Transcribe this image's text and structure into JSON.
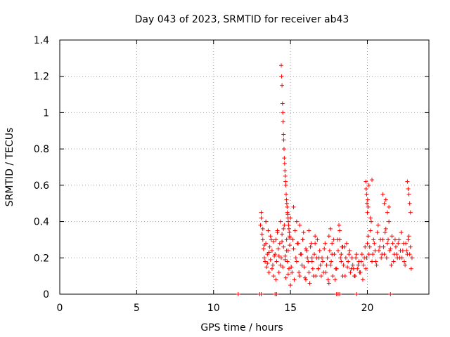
{
  "chart_data": {
    "type": "scatter",
    "title": "Day 043 of 2023, SRMTID for receiver ab43",
    "xlabel": "GPS time / hours",
    "ylabel": "SRMTID / TECUs",
    "xlim": [
      0,
      24
    ],
    "ylim": [
      0,
      1.4
    ],
    "xticks": [
      0,
      5,
      10,
      15,
      20
    ],
    "yticks": [
      0,
      0.2,
      0.4,
      0.6,
      0.8,
      1,
      1.2,
      1.4
    ],
    "xtick_labels": [
      "0",
      "5",
      "10",
      "15",
      "20"
    ],
    "ytick_labels": [
      "0",
      "0.2",
      "0.4",
      "0.6",
      "0.8",
      "1",
      "1.2",
      "1.4"
    ],
    "grid": true,
    "marker": "+",
    "color": "#ff0000",
    "series": [
      {
        "name": "SRMTID",
        "x": [
          11.6,
          13.0,
          13.1,
          14.0,
          14.1,
          18.0,
          18.1,
          18.2,
          19.3,
          21.5,
          13.05,
          13.1,
          13.15,
          13.2,
          13.25,
          13.3,
          13.35,
          13.4,
          13.45,
          13.5,
          13.55,
          13.6,
          13.65,
          13.7,
          13.75,
          13.8,
          13.85,
          13.9,
          13.95,
          13.1,
          13.2,
          13.3,
          13.4,
          13.5,
          13.6,
          13.7,
          13.8,
          13.9,
          14.0,
          14.05,
          14.1,
          14.15,
          14.2,
          14.25,
          14.3,
          14.35,
          14.4,
          14.45,
          14.5,
          14.55,
          14.6,
          14.65,
          14.7,
          14.75,
          14.8,
          14.85,
          14.9,
          14.95,
          14.05,
          14.15,
          14.25,
          14.35,
          14.45,
          14.55,
          14.65,
          14.75,
          14.85,
          14.95,
          14.4,
          14.42,
          14.45,
          14.48,
          14.5,
          14.52,
          14.55,
          14.56,
          14.58,
          14.6,
          14.62,
          14.64,
          14.66,
          14.68,
          14.7,
          14.72,
          14.74,
          14.76,
          14.78,
          14.8,
          14.82,
          14.84,
          14.86,
          14.88,
          14.9,
          14.92,
          14.94,
          15.0,
          15.1,
          15.2,
          15.3,
          15.4,
          15.5,
          15.6,
          15.7,
          15.8,
          15.9,
          16.0,
          16.1,
          16.2,
          16.3,
          16.4,
          16.5,
          16.6,
          16.7,
          16.8,
          16.9,
          15.05,
          15.15,
          15.25,
          15.35,
          15.45,
          15.55,
          15.65,
          15.75,
          15.85,
          15.95,
          16.05,
          16.15,
          16.25,
          16.35,
          16.45,
          16.55,
          16.65,
          16.75,
          16.85,
          16.95,
          15.0,
          15.2,
          15.4,
          15.6,
          15.8,
          16.0,
          16.2,
          16.4,
          16.6,
          16.8,
          17.0,
          17.1,
          17.2,
          17.3,
          17.4,
          17.5,
          17.6,
          17.7,
          17.8,
          17.9,
          18.0,
          18.1,
          18.2,
          18.3,
          18.4,
          18.5,
          18.6,
          18.7,
          18.8,
          18.9,
          17.05,
          17.15,
          17.25,
          17.35,
          17.45,
          17.55,
          17.65,
          17.75,
          17.85,
          17.95,
          18.05,
          18.15,
          18.25,
          18.35,
          18.45,
          18.55,
          18.65,
          18.75,
          18.85,
          18.95,
          17.5,
          17.6,
          17.7,
          18.2,
          18.3,
          18.4,
          19.0,
          19.1,
          19.2,
          19.3,
          19.4,
          19.5,
          19.6,
          19.7,
          19.8,
          19.9,
          20.0,
          20.1,
          20.2,
          20.3,
          20.4,
          20.5,
          20.6,
          20.7,
          20.8,
          20.9,
          19.05,
          19.15,
          19.25,
          19.35,
          19.45,
          19.55,
          19.65,
          19.75,
          19.85,
          19.95,
          20.05,
          20.15,
          20.25,
          20.35,
          20.45,
          20.55,
          20.65,
          20.75,
          20.85,
          20.95,
          19.9,
          19.92,
          19.95,
          19.98,
          20.0,
          20.02,
          20.05,
          20.1,
          20.2,
          20.3,
          21.0,
          21.1,
          21.2,
          21.3,
          21.4,
          21.5,
          21.6,
          21.7,
          21.8,
          21.9,
          22.0,
          22.1,
          22.2,
          22.3,
          22.4,
          22.5,
          22.6,
          22.7,
          22.8,
          22.9,
          21.05,
          21.15,
          21.25,
          21.35,
          21.45,
          21.55,
          21.65,
          21.75,
          21.85,
          21.95,
          22.05,
          22.15,
          22.25,
          22.35,
          22.45,
          22.55,
          22.65,
          22.75,
          22.85,
          21.0,
          21.1,
          21.2,
          21.3,
          21.4,
          22.6,
          22.65,
          22.7,
          22.75,
          22.8
        ],
        "y": [
          0,
          0,
          0,
          0,
          0,
          0,
          0,
          0,
          0,
          0,
          0.38,
          0.45,
          0.33,
          0.3,
          0.25,
          0.2,
          0.18,
          0.28,
          0.15,
          0.22,
          0.35,
          0.12,
          0.26,
          0.19,
          0.3,
          0.24,
          0.16,
          0.1,
          0.21,
          0.42,
          0.36,
          0.27,
          0.4,
          0.17,
          0.23,
          0.32,
          0.14,
          0.29,
          0.22,
          0.3,
          0.18,
          0.35,
          0.25,
          0.12,
          0.28,
          0.4,
          0.2,
          0.33,
          0.15,
          0.26,
          0.38,
          0.21,
          0.09,
          0.3,
          0.18,
          0.24,
          0.14,
          0.27,
          0.08,
          0.34,
          0.21,
          0.16,
          0.29,
          0.36,
          0.19,
          0.24,
          0.11,
          0.31,
          1.26,
          1.2,
          1.15,
          1.05,
          1.0,
          0.95,
          0.88,
          0.85,
          0.8,
          0.75,
          0.72,
          0.68,
          0.65,
          0.62,
          0.6,
          0.55,
          0.52,
          0.5,
          0.48,
          0.45,
          0.44,
          0.42,
          0.4,
          0.38,
          0.36,
          0.34,
          0.32,
          0.05,
          0.12,
          0.25,
          0.35,
          0.18,
          0.28,
          0.1,
          0.22,
          0.3,
          0.15,
          0.08,
          0.2,
          0.12,
          0.26,
          0.18,
          0.1,
          0.32,
          0.2,
          0.14,
          0.24,
          0.15,
          0.3,
          0.08,
          0.2,
          0.28,
          0.12,
          0.22,
          0.16,
          0.34,
          0.09,
          0.24,
          0.18,
          0.06,
          0.28,
          0.14,
          0.22,
          0.1,
          0.3,
          0.2,
          0.16,
          0.42,
          0.48,
          0.4,
          0.38,
          0.3,
          0.25,
          0.35,
          0.2,
          0.28,
          0.14,
          0.1,
          0.18,
          0.25,
          0.12,
          0.2,
          0.06,
          0.16,
          0.22,
          0.3,
          0.08,
          0.14,
          0.24,
          0.35,
          0.18,
          0.1,
          0.26,
          0.2,
          0.15,
          0.22,
          0.12,
          0.2,
          0.12,
          0.28,
          0.16,
          0.08,
          0.24,
          0.18,
          0.1,
          0.22,
          0.14,
          0.3,
          0.38,
          0.2,
          0.26,
          0.16,
          0.1,
          0.28,
          0.18,
          0.24,
          0.14,
          0.32,
          0.36,
          0.28,
          0.3,
          0.22,
          0.26,
          0.2,
          0.14,
          0.1,
          0.22,
          0.16,
          0.12,
          0.18,
          0.08,
          0.2,
          0.14,
          0.28,
          0.22,
          0.35,
          0.18,
          0.3,
          0.24,
          0.16,
          0.38,
          0.26,
          0.2,
          0.16,
          0.1,
          0.2,
          0.14,
          0.18,
          0.12,
          0.22,
          0.16,
          0.26,
          0.2,
          0.32,
          0.26,
          0.4,
          0.22,
          0.28,
          0.18,
          0.34,
          0.24,
          0.3,
          0.22,
          0.62,
          0.58,
          0.55,
          0.5,
          0.45,
          0.52,
          0.48,
          0.6,
          0.42,
          0.63,
          0.3,
          0.22,
          0.36,
          0.28,
          0.4,
          0.25,
          0.32,
          0.18,
          0.3,
          0.22,
          0.28,
          0.2,
          0.34,
          0.24,
          0.18,
          0.28,
          0.22,
          0.32,
          0.26,
          0.2,
          0.26,
          0.34,
          0.2,
          0.3,
          0.24,
          0.16,
          0.28,
          0.22,
          0.26,
          0.2,
          0.3,
          0.24,
          0.2,
          0.28,
          0.16,
          0.24,
          0.3,
          0.22,
          0.14,
          0.55,
          0.5,
          0.52,
          0.45,
          0.48,
          0.62,
          0.58,
          0.55,
          0.5,
          0.45
        ]
      }
    ]
  }
}
